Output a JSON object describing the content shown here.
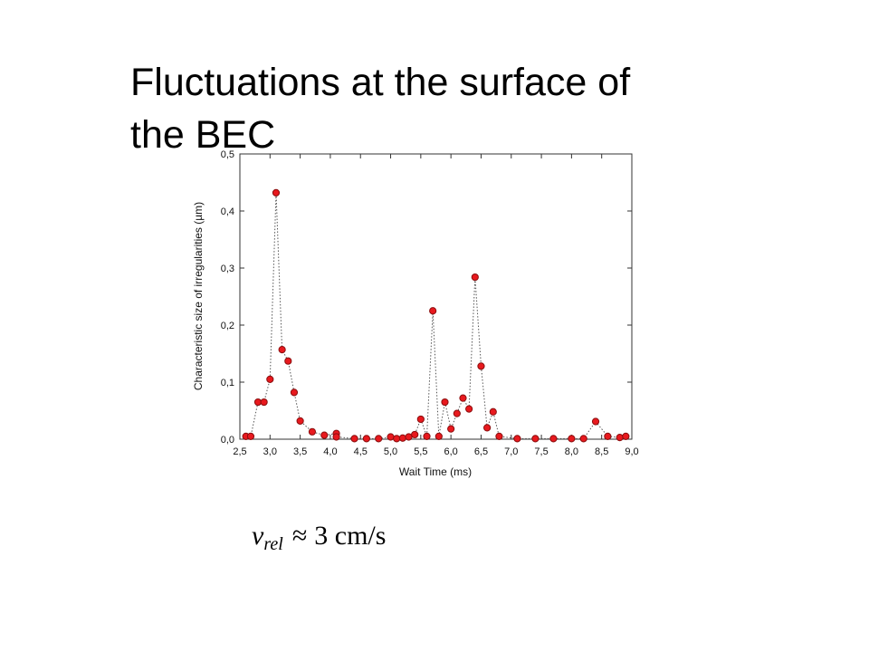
{
  "slide": {
    "title": "Fluctuations at the surface of\nthe BEC",
    "formula": {
      "variable": "v",
      "subscript": "rel",
      "relation": "≈",
      "value": "3 cm/s"
    }
  },
  "chart_data": {
    "type": "scatter",
    "title": "",
    "xlabel": "Wait Time (ms)",
    "ylabel": "Characteristic size of irregularities (µm)",
    "xlim": [
      2.5,
      9.0
    ],
    "ylim": [
      0.0,
      0.5
    ],
    "x_ticks": [
      "2,5",
      "3,0",
      "3,5",
      "4,0",
      "4,5",
      "5,0",
      "5,5",
      "6,0",
      "6,5",
      "7,0",
      "7,5",
      "8,0",
      "8,5",
      "9,0"
    ],
    "y_ticks": [
      "0,0",
      "0,1",
      "0,2",
      "0,3",
      "0,4",
      "0,5"
    ],
    "grid": false,
    "marker_color": "#e8191e",
    "line_style": "dotted",
    "series": [
      {
        "x": [
          2.6,
          2.68,
          2.8,
          2.9,
          3.0,
          3.1,
          3.2,
          3.3,
          3.4,
          3.5,
          3.7,
          3.9,
          4.1,
          4.1,
          4.4,
          4.6,
          4.8,
          5.0,
          5.1,
          5.2,
          5.3,
          5.4,
          5.5,
          5.6,
          5.7,
          5.8,
          5.9,
          6.0,
          6.1,
          6.2,
          6.3,
          6.4,
          6.5,
          6.6,
          6.7,
          6.8,
          7.1,
          7.4,
          7.7,
          8.0,
          8.2,
          8.4,
          8.6,
          8.8,
          8.9
        ],
        "y": [
          0.005,
          0.005,
          0.065,
          0.065,
          0.105,
          0.432,
          0.157,
          0.137,
          0.082,
          0.032,
          0.013,
          0.007,
          0.01,
          0.004,
          0.001,
          0.001,
          0.001,
          0.004,
          0.001,
          0.002,
          0.004,
          0.008,
          0.035,
          0.005,
          0.225,
          0.005,
          0.065,
          0.018,
          0.045,
          0.072,
          0.053,
          0.284,
          0.128,
          0.02,
          0.048,
          0.005,
          0.001,
          0.001,
          0.001,
          0.001,
          0.001,
          0.031,
          0.005,
          0.003,
          0.005
        ]
      }
    ]
  }
}
